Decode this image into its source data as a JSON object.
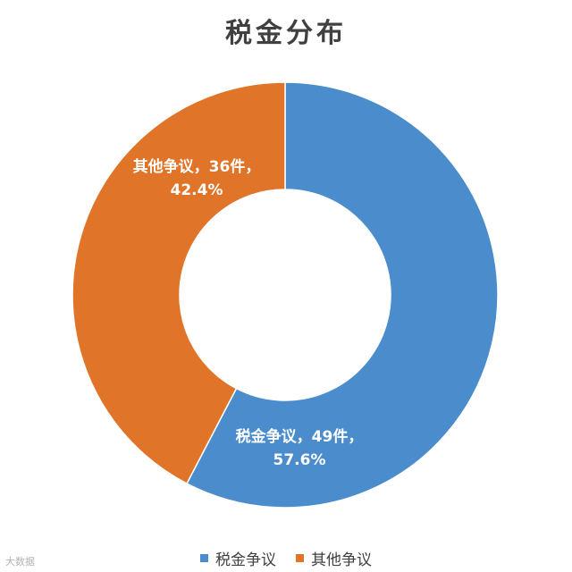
{
  "chart_data": {
    "type": "pie",
    "title": "税金分布",
    "categories": [
      "税金争议",
      "其他争议"
    ],
    "values": [
      49,
      36
    ],
    "percentages": [
      "57.6%",
      "42.4%"
    ],
    "series": [
      {
        "name": "税金争议",
        "value": 49,
        "percent": "57.6%",
        "color": "#4a8ccc",
        "label_line1": "税金争议，49件，",
        "label_line2": "57.6%"
      },
      {
        "name": "其他争议",
        "value": 36,
        "percent": "42.4%",
        "color": "#e07428",
        "label_line1": "其他争议，36件，",
        "label_line2": "42.4%"
      }
    ],
    "donut": true,
    "legend_position": "bottom"
  },
  "watermark": "大数据"
}
